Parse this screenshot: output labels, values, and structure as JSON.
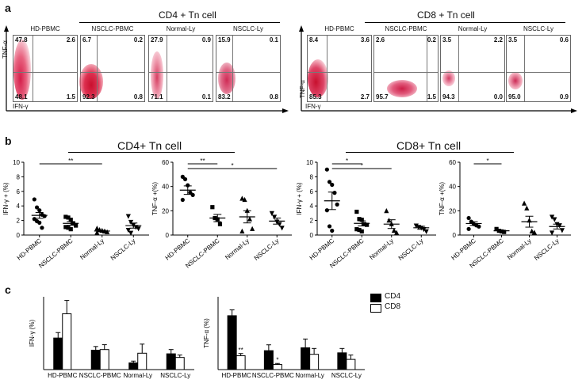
{
  "panel_a": {
    "label": "a",
    "cd4_title": "CD4 + Tn cell",
    "cd8_title": "CD8 + Tn cell",
    "y_axis": "TNF-α",
    "x_axis": "IFN-γ",
    "cd4_plots": [
      {
        "name": "HD-PBMC",
        "tl": "47.8",
        "tr": "2.6",
        "bl": "48.1",
        "br": "1.5"
      },
      {
        "name": "NSCLC-PBMC",
        "tl": "6.7",
        "tr": "0.2",
        "bl": "92.3",
        "br": "0.8"
      },
      {
        "name": "Normal-Ly",
        "tl": "27.9",
        "tr": "0.9",
        "bl": "71.1",
        "br": "0.1"
      },
      {
        "name": "NSCLC-Ly",
        "tl": "15.9",
        "tr": "0.1",
        "bl": "83.2",
        "br": "0.8"
      }
    ],
    "cd8_plots": [
      {
        "name": "HD-PBMC",
        "tl": "8.4",
        "tr": "3.6",
        "bl": "85.3",
        "br": "2.7"
      },
      {
        "name": "NSCLC-PBMC",
        "tl": "2.6",
        "tr": "0.2",
        "bl": "95.7",
        "br": "1.5"
      },
      {
        "name": "Normal-Ly",
        "tl": "3.5",
        "tr": "2.2",
        "bl": "94.3",
        "br": "0.0"
      },
      {
        "name": "NSCLC-Ly",
        "tl": "3.5",
        "tr": "0.6",
        "bl": "95.0",
        "br": "0.9"
      }
    ]
  },
  "panel_b": {
    "label": "b",
    "cd4_title": "CD4+ Tn cell",
    "cd8_title": "CD8+ Tn cell",
    "groups": [
      "HD-PBMC",
      "NSCLC-PBMC",
      "Normal-Ly",
      "NSCLC-Ly"
    ]
  },
  "panel_c": {
    "label": "c",
    "legend": [
      "CD4",
      "CD8"
    ],
    "groups": [
      "HD-PBMC",
      "NSCLC-PBMC",
      "Normal-Ly",
      "NSCLC-Ly"
    ]
  },
  "chart_data": [
    {
      "type": "scatter",
      "id": "b-cd4-ifng",
      "ylabel": "IFN-γ + (%)",
      "ylim": [
        0,
        10
      ],
      "yticks": [
        "0",
        "2",
        "4",
        "6",
        "8",
        "10"
      ],
      "categories": [
        "HD-PBMC",
        "NSCLC-PBMC",
        "Normal-Ly",
        "NSCLC-Ly"
      ],
      "markers": [
        "circle",
        "square",
        "triangle",
        "triangle-down"
      ],
      "points": [
        [
          4.9,
          3.8,
          3.4,
          2.8,
          2.6,
          2.2,
          1.9,
          1.7,
          1.0
        ],
        [
          2.5,
          2.4,
          2.1,
          1.6,
          1.3,
          1.1,
          1.0,
          0.8
        ],
        [
          0.9,
          0.7,
          0.6,
          0.5,
          0.4,
          0.3
        ],
        [
          2.6,
          1.8,
          1.4,
          1.1,
          0.9,
          0.7,
          0.3
        ]
      ],
      "mean": [
        2.7,
        1.6,
        0.55,
        1.3
      ],
      "sem": [
        0.4,
        0.25,
        0.1,
        0.35
      ],
      "significance": [
        {
          "from": "HD-PBMC",
          "to": "Normal-Ly",
          "label": "**"
        }
      ]
    },
    {
      "type": "scatter",
      "id": "b-cd4-tnfa",
      "ylabel": "TNF-α +(%)",
      "ylim": [
        0,
        60
      ],
      "yticks": [
        "0",
        "20",
        "40",
        "60"
      ],
      "categories": [
        "HD-PBMC",
        "NSCLC-PBMC",
        "Normal-Ly",
        "NSCLC-Ly"
      ],
      "markers": [
        "circle",
        "square",
        "triangle",
        "triangle-down"
      ],
      "points": [
        [
          48,
          46,
          41,
          35,
          33,
          29
        ],
        [
          23,
          14,
          13,
          9
        ],
        [
          30,
          29,
          20,
          13,
          5,
          3
        ],
        [
          18,
          15,
          11,
          9,
          6
        ]
      ],
      "mean": [
        37,
        14,
        15,
        11.5
      ],
      "sem": [
        3.5,
        3,
        5,
        2.5
      ],
      "significance": [
        {
          "from": "HD-PBMC",
          "to": "NSCLC-PBMC",
          "label": "**"
        },
        {
          "from": "HD-PBMC",
          "to": "NSCLC-Ly",
          "label": "*"
        }
      ]
    },
    {
      "type": "scatter",
      "id": "b-cd8-ifng",
      "ylabel": "IFN-γ + (%)",
      "ylim": [
        0,
        10
      ],
      "yticks": [
        "0",
        "2",
        "4",
        "6",
        "8",
        "10"
      ],
      "categories": [
        "HD-PBMC",
        "NSCLC-PBMC",
        "Normal-Ly",
        "NSCLC-Ly"
      ],
      "markers": [
        "circle",
        "square",
        "triangle",
        "triangle-down"
      ],
      "points": [
        [
          9.0,
          7.3,
          6.9,
          5.8,
          4.2,
          3.4,
          1.2,
          0.6
        ],
        [
          3.2,
          2.2,
          2.1,
          1.5,
          1.4,
          0.8,
          0.7,
          0.5
        ],
        [
          3.3,
          2.0,
          1.5,
          0.6,
          0.3
        ],
        [
          1.3,
          1.1,
          1.0,
          0.8,
          0.5
        ]
      ],
      "mean": [
        4.7,
        1.6,
        1.5,
        1.0
      ],
      "sem": [
        1.2,
        0.35,
        0.6,
        0.2
      ],
      "significance": [
        {
          "from": "HD-PBMC",
          "to": "NSCLC-PBMC",
          "label": "*"
        },
        {
          "from": "HD-PBMC",
          "to": "Normal-Ly",
          "label": "*"
        }
      ]
    },
    {
      "type": "scatter",
      "id": "b-cd8-tnfa",
      "ylabel": "TNF-α +(%)",
      "ylim": [
        0,
        60
      ],
      "yticks": [
        "0",
        "20",
        "40",
        "60"
      ],
      "categories": [
        "HD-PBMC",
        "NSCLC-PBMC",
        "Normal-Ly",
        "NSCLC-Ly"
      ],
      "markers": [
        "circle",
        "square",
        "triangle",
        "triangle-down"
      ],
      "points": [
        [
          14,
          11,
          9,
          8,
          7,
          5
        ],
        [
          5,
          3.5,
          3,
          2.5
        ],
        [
          26,
          22,
          12,
          3,
          2
        ],
        [
          15,
          13,
          9,
          8,
          4,
          2
        ]
      ],
      "mean": [
        9.5,
        3.5,
        11,
        7
      ],
      "sem": [
        1.5,
        0.5,
        4.5,
        2
      ],
      "significance": [
        {
          "from": "HD-PBMC",
          "to": "NSCLC-PBMC",
          "label": "*"
        }
      ]
    },
    {
      "type": "bar",
      "id": "c-ifng",
      "ylabel": "IFN-γ (%)",
      "ylim": [
        0,
        6
      ],
      "categories": [
        "HD-PBMC",
        "NSCLC-PBMC",
        "Normal-Ly",
        "NSCLC-Ly"
      ],
      "series": [
        {
          "name": "CD4",
          "values": [
            2.6,
            1.6,
            0.55,
            1.3
          ],
          "err": [
            0.45,
            0.3,
            0.15,
            0.35
          ]
        },
        {
          "name": "CD8",
          "values": [
            4.6,
            1.65,
            1.35,
            1.0
          ],
          "err": [
            1.1,
            0.4,
            0.75,
            0.2
          ]
        }
      ],
      "annotations": []
    },
    {
      "type": "bar",
      "id": "c-tnfa",
      "ylabel": "TNF-α (%)",
      "ylim": [
        0,
        50
      ],
      "categories": [
        "HD-PBMC",
        "NSCLC-PBMC",
        "Normal-Ly",
        "NSCLC-Ly"
      ],
      "series": [
        {
          "name": "CD4",
          "values": [
            37,
            13,
            15,
            11.5
          ],
          "err": [
            4,
            4,
            6,
            3
          ]
        },
        {
          "name": "CD8",
          "values": [
            9.5,
            3.5,
            10.5,
            7
          ],
          "err": [
            1.5,
            0.7,
            4,
            3
          ]
        }
      ],
      "annotations": [
        {
          "series": "CD8",
          "category": "HD-PBMC",
          "label": "**"
        },
        {
          "series": "CD8",
          "category": "NSCLC-PBMC",
          "label": "*"
        }
      ]
    }
  ]
}
